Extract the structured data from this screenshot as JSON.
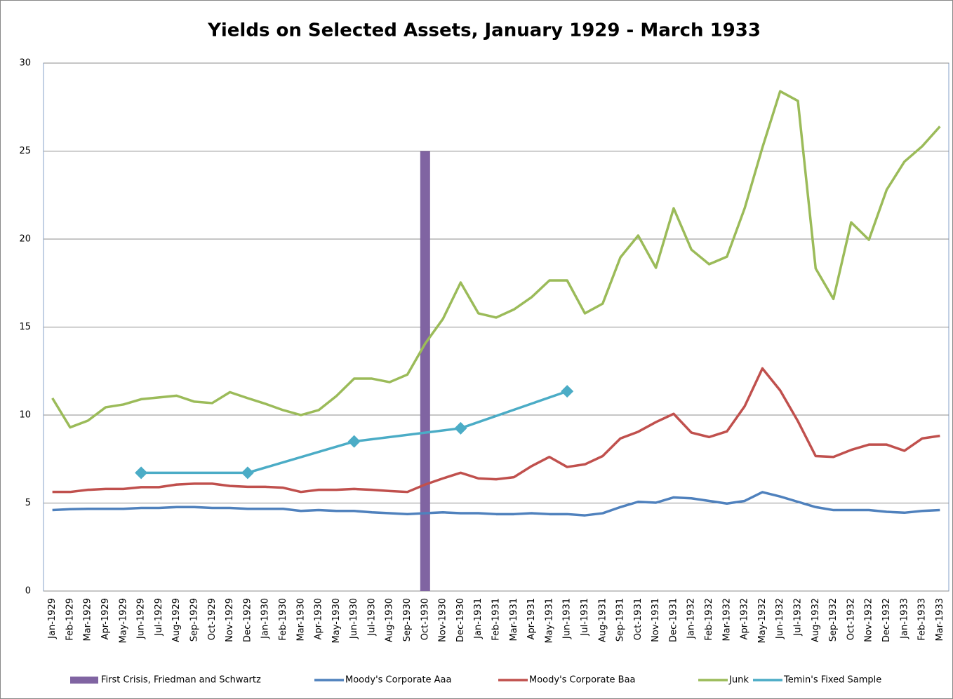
{
  "chart_data": {
    "type": "line",
    "title": "Yields on Selected Assets, January 1929 - March 1933",
    "categories": [
      "Jan-1929",
      "Feb-1929",
      "Mar-1929",
      "Apr-1929",
      "May-1929",
      "Jun-1929",
      "Jul-1929",
      "Aug-1929",
      "Sep-1929",
      "Oct-1929",
      "Nov-1929",
      "Dec-1929",
      "Jan-1930",
      "Feb-1930",
      "Mar-1930",
      "Apr-1930",
      "May-1930",
      "Jun-1930",
      "Jul-1930",
      "Aug-1930",
      "Sep-1930",
      "Oct-1930",
      "Nov-1930",
      "Dec-1930",
      "Jan-1931",
      "Feb-1931",
      "Mar-1931",
      "Apr-1931",
      "May-1931",
      "Jun-1931",
      "Jul-1931",
      "Aug-1931",
      "Sep-1931",
      "Oct-1931",
      "Nov-1931",
      "Dec-1931",
      "Jan-1932",
      "Feb-1932",
      "Mar-1932",
      "Apr-1932",
      "May-1932",
      "Jun-1932",
      "Jul-1932",
      "Aug-1932",
      "Sep-1932",
      "Oct-1932",
      "Nov-1932",
      "Dec-1932",
      "Jan-1933",
      "Feb-1933",
      "Mar-1933"
    ],
    "series": [
      {
        "name": "First Crisis, Friedman and Schwartz",
        "type": "bar",
        "color": "#8064a2",
        "values": [
          null,
          null,
          null,
          null,
          null,
          null,
          null,
          null,
          null,
          null,
          null,
          null,
          null,
          null,
          null,
          null,
          null,
          null,
          null,
          null,
          null,
          25,
          null,
          null,
          null,
          null,
          null,
          null,
          null,
          null,
          null,
          null,
          null,
          null,
          null,
          null,
          null,
          null,
          null,
          null,
          null,
          null,
          null,
          null,
          null,
          null,
          null,
          null,
          null,
          null,
          null
        ]
      },
      {
        "name": "Moody's Corporate Aaa",
        "type": "line",
        "color": "#4f81bd",
        "values": [
          4.6,
          4.65,
          4.67,
          4.67,
          4.67,
          4.72,
          4.72,
          4.77,
          4.77,
          4.72,
          4.72,
          4.67,
          4.67,
          4.67,
          4.55,
          4.6,
          4.55,
          4.55,
          4.47,
          4.42,
          4.37,
          4.42,
          4.47,
          4.42,
          4.42,
          4.37,
          4.37,
          4.42,
          4.37,
          4.37,
          4.3,
          4.42,
          4.77,
          5.07,
          5.02,
          5.32,
          5.27,
          5.12,
          4.97,
          5.12,
          5.62,
          5.37,
          5.07,
          4.77,
          4.6,
          4.6,
          4.6,
          4.5,
          4.45,
          4.55,
          4.6
        ]
      },
      {
        "name": "Moody's Corporate Baa",
        "type": "line",
        "color": "#c0504d",
        "values": [
          5.63,
          5.63,
          5.75,
          5.8,
          5.8,
          5.9,
          5.9,
          6.05,
          6.1,
          6.1,
          5.97,
          5.92,
          5.92,
          5.87,
          5.63,
          5.75,
          5.75,
          5.8,
          5.75,
          5.68,
          5.63,
          6.05,
          6.4,
          6.72,
          6.4,
          6.35,
          6.47,
          7.1,
          7.62,
          7.05,
          7.2,
          7.67,
          8.67,
          9.05,
          9.6,
          10.07,
          9.0,
          8.75,
          9.07,
          10.5,
          12.65,
          11.4,
          9.65,
          7.67,
          7.62,
          8.02,
          8.32,
          8.32,
          7.97,
          8.67,
          8.82
        ]
      },
      {
        "name": "Junk",
        "type": "line",
        "color": "#9bbb59",
        "values": [
          10.96,
          9.3,
          9.68,
          10.44,
          10.6,
          10.9,
          11.0,
          11.1,
          10.76,
          10.68,
          11.3,
          10.96,
          10.64,
          10.28,
          10.0,
          10.28,
          11.08,
          12.07,
          12.07,
          11.87,
          12.3,
          14.06,
          15.46,
          17.53,
          15.78,
          15.54,
          16.0,
          16.7,
          17.65,
          17.65,
          15.78,
          16.33,
          18.96,
          20.2,
          18.37,
          21.75,
          19.4,
          18.57,
          19.0,
          21.75,
          25.2,
          28.4,
          27.85,
          18.33,
          16.6,
          20.95,
          19.96,
          22.8,
          24.4,
          25.27,
          26.4
        ]
      },
      {
        "name": "Temin's Fixed Sample",
        "type": "line",
        "markers": true,
        "color": "#4bacc6",
        "values": [
          null,
          null,
          null,
          null,
          null,
          6.72,
          null,
          null,
          null,
          null,
          null,
          6.72,
          null,
          null,
          null,
          null,
          null,
          8.5,
          null,
          null,
          null,
          null,
          null,
          9.25,
          null,
          null,
          null,
          null,
          null,
          11.35,
          null,
          null,
          null,
          null,
          null,
          null,
          null,
          null,
          null,
          null,
          null,
          null,
          null,
          null,
          null,
          null,
          null,
          null,
          null,
          null,
          null
        ]
      }
    ],
    "ylim": [
      0,
      30
    ],
    "yticks": [
      0,
      5,
      10,
      15,
      20,
      25,
      30
    ],
    "grid": true,
    "legend": "bottom"
  }
}
